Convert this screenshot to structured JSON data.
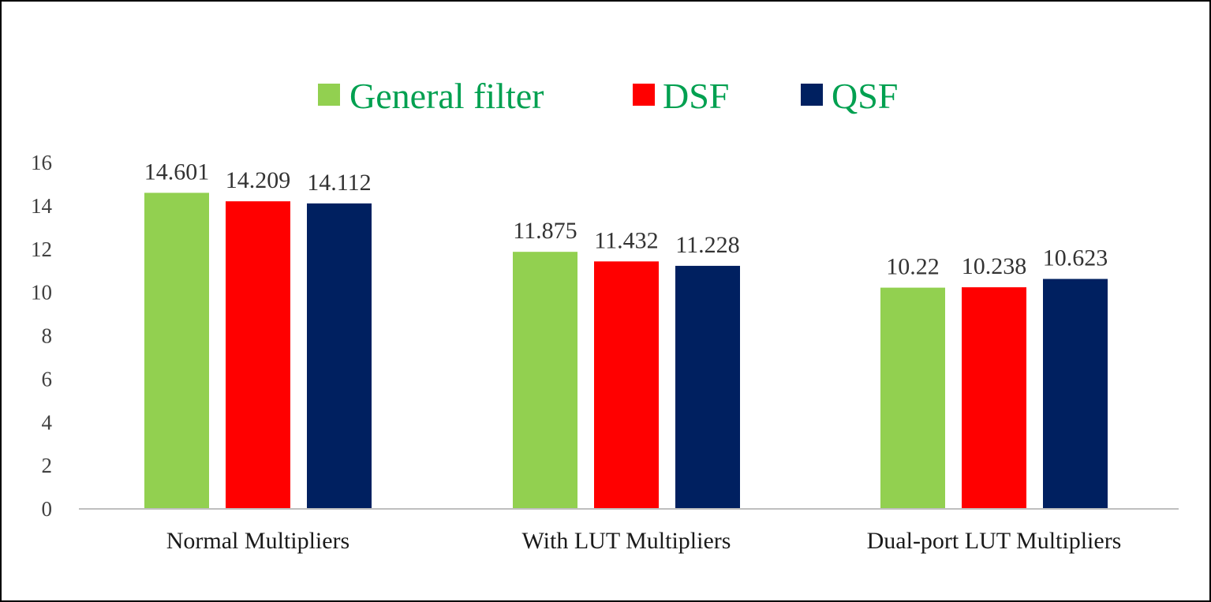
{
  "chart_data": {
    "type": "bar",
    "categories": [
      "Normal Multipliers",
      "With LUT Multipliers",
      "Dual-port LUT Multipliers"
    ],
    "series": [
      {
        "name": "General filter",
        "values": [
          14.601,
          11.875,
          10.22
        ],
        "labels": [
          "14.601",
          "11.875",
          "10.22"
        ]
      },
      {
        "name": "DSF",
        "values": [
          14.209,
          11.432,
          10.238
        ],
        "labels": [
          "14.209",
          "11.432",
          "10.238"
        ]
      },
      {
        "name": "QSF",
        "values": [
          14.112,
          11.228,
          10.623
        ],
        "labels": [
          "14.112",
          "11.228",
          "10.623"
        ]
      }
    ],
    "ylim": [
      0,
      16
    ],
    "yticks": [
      "0",
      "2",
      "4",
      "6",
      "8",
      "10",
      "12",
      "14",
      "16"
    ],
    "grid": false,
    "legend_position": "top",
    "title": "",
    "xlabel": "",
    "ylabel": ""
  },
  "colors": {
    "series": [
      "#92d050",
      "#ff0000",
      "#002060"
    ],
    "legend_text": "#00a050",
    "axis": "#bfbfbf"
  }
}
